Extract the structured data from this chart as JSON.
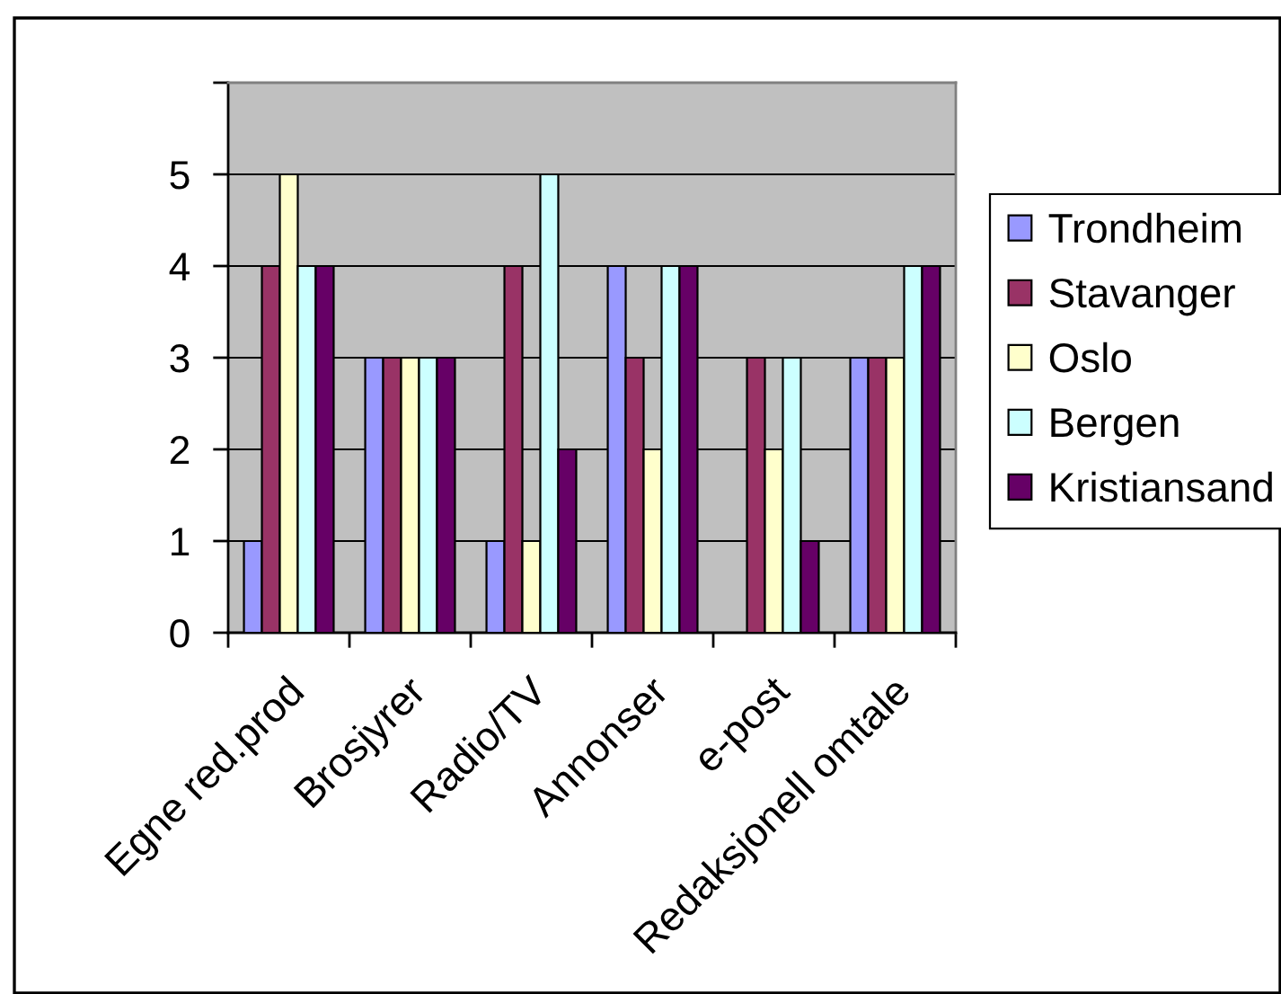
{
  "chart_data": {
    "type": "bar",
    "categories": [
      "Egne red.prod",
      "Brosjyrer",
      "Radio/TV",
      "Annonser",
      "e-post",
      "Redaksjonell omtale"
    ],
    "series": [
      {
        "name": "Trondheim",
        "color": "#9999ff",
        "values": [
          1,
          3,
          1,
          4,
          null,
          3
        ]
      },
      {
        "name": "Stavanger",
        "color": "#993366",
        "values": [
          4,
          3,
          4,
          3,
          3,
          3
        ]
      },
      {
        "name": "Oslo",
        "color": "#ffffcc",
        "values": [
          5,
          3,
          1,
          2,
          2,
          3
        ]
      },
      {
        "name": "Bergen",
        "color": "#ccffff",
        "values": [
          4,
          3,
          5,
          4,
          3,
          4
        ]
      },
      {
        "name": "Kristiansand",
        "color": "#660066",
        "values": [
          4,
          3,
          2,
          4,
          1,
          4
        ]
      }
    ],
    "ylim": [
      0,
      6
    ],
    "yticks": [
      0,
      1,
      2,
      3,
      4,
      5,
      {
        "value": 6,
        "label": null
      }
    ],
    "grid": "y",
    "legend": "right"
  }
}
